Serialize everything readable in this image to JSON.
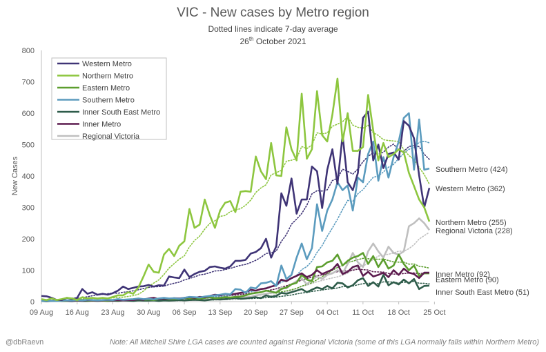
{
  "title": "VIC - New cases by Metro region",
  "subtitle": "Dotted  lines indicate 7-day average",
  "date": {
    "day": "26",
    "suffix": "th",
    "rest": " October 2021"
  },
  "footer": {
    "handle": "@dbRaevn",
    "note": "Note: All Mitchell Shire LGA cases are counted against Regional Victoria (some of this LGA normally falls within Northern Metro)"
  },
  "chart_data": {
    "type": "line",
    "ylabel": "New Cases",
    "xlabel": "",
    "ylim": [
      0,
      800
    ],
    "yticks": [
      0,
      100,
      200,
      300,
      400,
      500,
      600,
      700,
      800
    ],
    "x_range": [
      "2021-08-09",
      "2021-10-25"
    ],
    "xtick_labels": [
      "09 Aug",
      "16 Aug",
      "23 Aug",
      "30 Aug",
      "06 Sep",
      "13 Sep",
      "20 Sep",
      "27 Sep",
      "04 Oct",
      "11 Oct",
      "18 Oct",
      "25 Oct"
    ],
    "grid": false,
    "legend_position": "top-left",
    "averages_note": "7-day average shown as dotted line per series",
    "series": [
      {
        "name": "Western Metro",
        "color": "#3f3476",
        "end_label": "Western Metro (362)",
        "values": [
          18,
          17,
          12,
          5,
          5,
          12,
          8,
          12,
          40,
          25,
          30,
          22,
          25,
          22,
          27,
          35,
          48,
          40,
          44,
          48,
          49,
          53,
          48,
          52,
          51,
          80,
          77,
          75,
          102,
          78,
          88,
          95,
          98,
          110,
          112,
          108,
          105,
          112,
          130,
          130,
          133,
          153,
          158,
          170,
          200,
          140,
          176,
          345,
          305,
          392,
          280,
          325,
          325,
          430,
          415,
          298,
          420,
          485,
          375,
          530,
          380,
          355,
          410,
          585,
          605,
          450,
          500,
          425,
          470,
          475,
          452,
          575,
          560,
          520,
          402,
          300,
          362
        ]
      },
      {
        "name": "Northern Metro",
        "color": "#8dc63f",
        "end_label": "Northern Metro (255)",
        "values": [
          8,
          5,
          10,
          5,
          8,
          12,
          10,
          5,
          14,
          10,
          12,
          10,
          12,
          10,
          15,
          20,
          20,
          30,
          25,
          45,
          80,
          118,
          95,
          92,
          150,
          168,
          145,
          178,
          192,
          295,
          235,
          245,
          325,
          275,
          235,
          290,
          315,
          320,
          285,
          350,
          352,
          350,
          462,
          415,
          390,
          505,
          402,
          400,
          555,
          485,
          450,
          662,
          455,
          485,
          670,
          530,
          510,
          595,
          710,
          510,
          600,
          480,
          480,
          492,
          658,
          545,
          450,
          505,
          460,
          470,
          485,
          475,
          410,
          368,
          325,
          300,
          255
        ]
      },
      {
        "name": "Eastern Metro",
        "color": "#5c9e2e",
        "end_label": "Eastern Metro (90)",
        "values": [
          3,
          4,
          2,
          2,
          3,
          2,
          4,
          3,
          5,
          4,
          3,
          4,
          3,
          3,
          5,
          4,
          6,
          5,
          6,
          8,
          6,
          7,
          5,
          8,
          10,
          7,
          8,
          9,
          12,
          10,
          11,
          9,
          12,
          14,
          11,
          12,
          14,
          13,
          15,
          16,
          20,
          25,
          28,
          30,
          35,
          32,
          28,
          40,
          45,
          55,
          60,
          85,
          70,
          65,
          110,
          112,
          125,
          130,
          150,
          115,
          130,
          140,
          145,
          155,
          120,
          145,
          110,
          135,
          105,
          115,
          150,
          120,
          100,
          115,
          82,
          90,
          90
        ]
      },
      {
        "name": "Southern Metro",
        "color": "#5b9bbe",
        "end_label": "Southern Metro (424)",
        "values": [
          2,
          3,
          2,
          2,
          3,
          4,
          3,
          5,
          4,
          6,
          5,
          4,
          5,
          6,
          5,
          8,
          6,
          7,
          8,
          10,
          8,
          9,
          7,
          10,
          12,
          10,
          11,
          9,
          12,
          15,
          14,
          13,
          16,
          18,
          20,
          22,
          25,
          23,
          40,
          38,
          28,
          45,
          42,
          58,
          60,
          65,
          50,
          115,
          72,
          85,
          140,
          185,
          135,
          170,
          310,
          225,
          290,
          325,
          380,
          355,
          370,
          290,
          395,
          380,
          470,
          510,
          385,
          460,
          395,
          460,
          510,
          585,
          600,
          420,
          580,
          420,
          424
        ]
      },
      {
        "name": "Inner South East Metro",
        "color": "#2e5c4a",
        "end_label": "Inner South East Metro (51)",
        "values": [
          2,
          1,
          2,
          3,
          2,
          2,
          1,
          3,
          2,
          2,
          3,
          2,
          3,
          2,
          3,
          2,
          4,
          3,
          2,
          4,
          3,
          3,
          4,
          2,
          4,
          3,
          4,
          5,
          4,
          5,
          6,
          5,
          4,
          6,
          8,
          7,
          8,
          10,
          12,
          9,
          10,
          12,
          14,
          11,
          20,
          15,
          18,
          28,
          25,
          30,
          35,
          40,
          30,
          38,
          45,
          40,
          50,
          42,
          60,
          58,
          45,
          52,
          68,
          75,
          50,
          62,
          48,
          85,
          52,
          62,
          55,
          70,
          58,
          72,
          40,
          50,
          51
        ]
      },
      {
        "name": "Inner Metro",
        "color": "#5c1b4e",
        "end_label": "Inner Metro (92)",
        "values": [
          3,
          4,
          2,
          3,
          4,
          3,
          2,
          4,
          3,
          5,
          4,
          3,
          4,
          5,
          4,
          5,
          4,
          5,
          5,
          8,
          6,
          10,
          12,
          8,
          10,
          9,
          11,
          10,
          12,
          14,
          12,
          15,
          14,
          18,
          22,
          20,
          24,
          22,
          25,
          28,
          30,
          38,
          35,
          40,
          42,
          48,
          52,
          70,
          65,
          75,
          82,
          90,
          78,
          85,
          100,
          88,
          95,
          102,
          120,
          88,
          95,
          110,
          115,
          82,
          95,
          80,
          85,
          92,
          78,
          100,
          85,
          105,
          92,
          88,
          75,
          92,
          92
        ]
      },
      {
        "name": "Regional Victoria",
        "color": "#bfbfbf",
        "end_label": "Regional Victoria (228)",
        "values": [
          2,
          3,
          2,
          2,
          3,
          4,
          3,
          2,
          4,
          3,
          3,
          4,
          3,
          3,
          2,
          4,
          3,
          4,
          3,
          3,
          4,
          5,
          4,
          3,
          5,
          4,
          5,
          6,
          5,
          6,
          5,
          7,
          6,
          8,
          7,
          6,
          8,
          9,
          10,
          12,
          14,
          15,
          20,
          22,
          25,
          28,
          30,
          45,
          42,
          55,
          65,
          75,
          55,
          70,
          80,
          72,
          85,
          90,
          100,
          90,
          120,
          155,
          125,
          110,
          160,
          185,
          160,
          140,
          175,
          155,
          150,
          160,
          240,
          250,
          265,
          250,
          228
        ]
      }
    ]
  }
}
